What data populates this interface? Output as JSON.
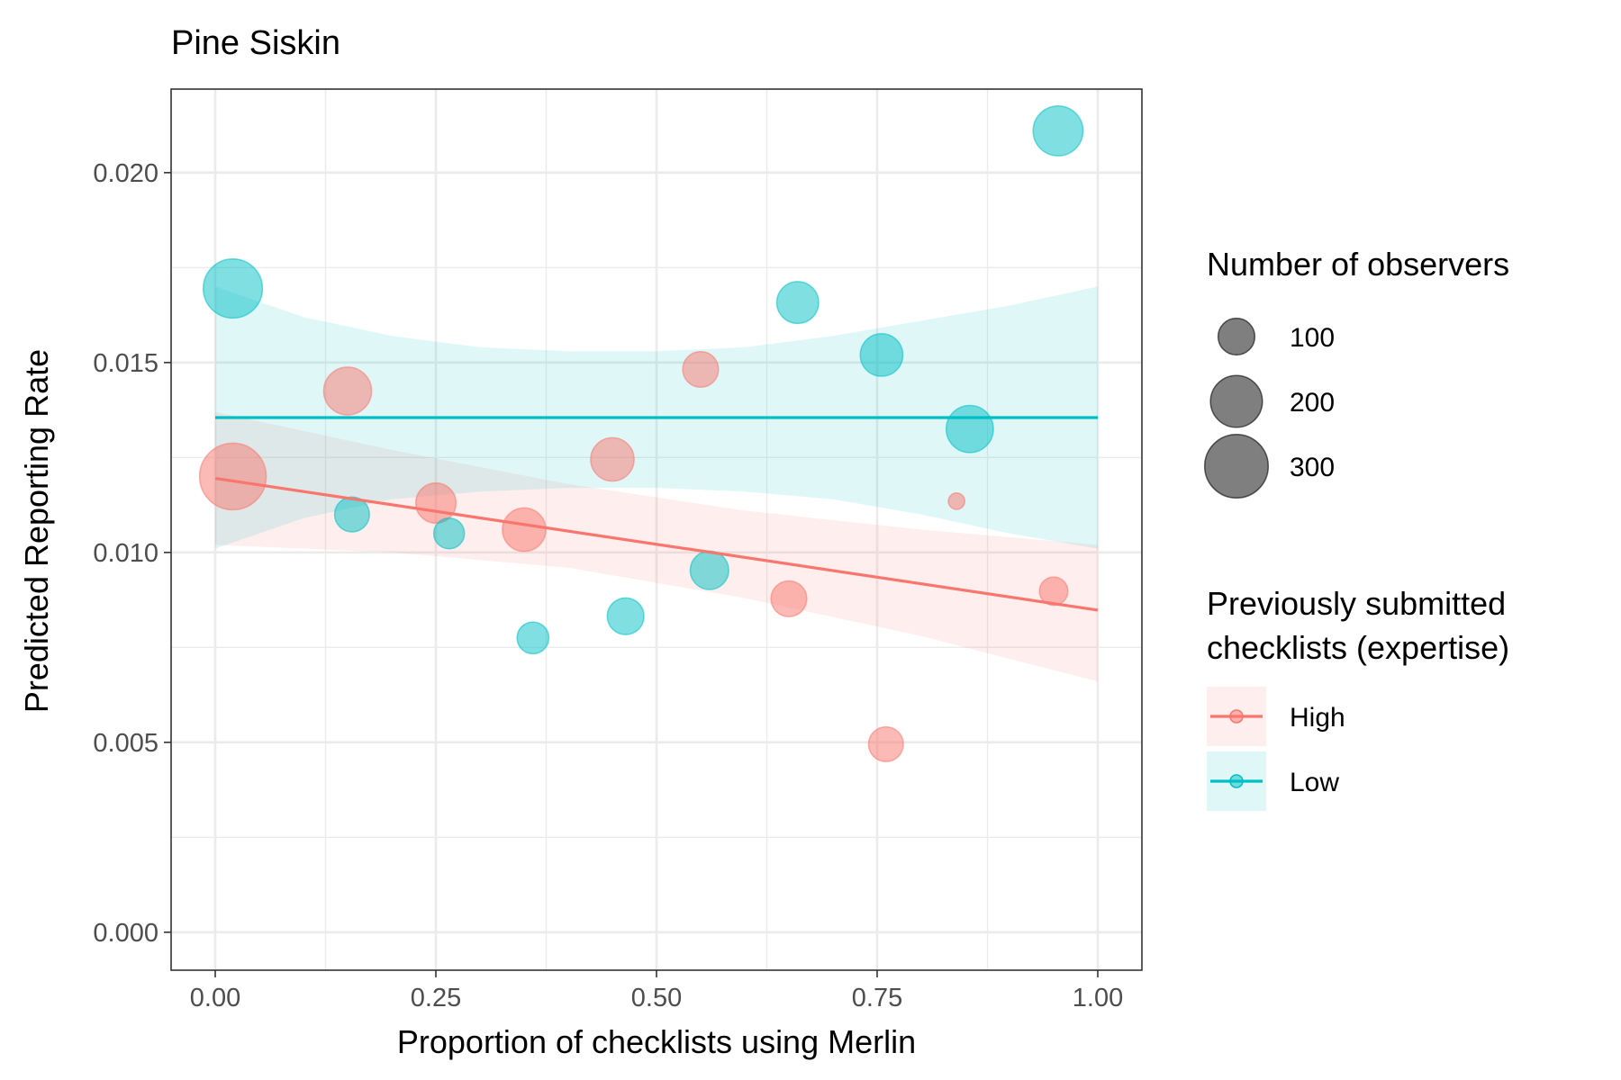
{
  "chart_data": {
    "type": "scatter",
    "title": "Pine Siskin",
    "xlabel": "Proportion of checklists using Merlin",
    "ylabel": "Predicted Reporting Rate",
    "xlim": [
      -0.05,
      1.05
    ],
    "ylim": [
      -0.001,
      0.0222
    ],
    "x_ticks": [
      0,
      0.25,
      0.5,
      0.75,
      1
    ],
    "x_tick_labels": [
      "0.00",
      "0.25",
      "0.50",
      "0.75",
      "1.00"
    ],
    "y_ticks": [
      0,
      0.005,
      0.01,
      0.015,
      0.02
    ],
    "y_tick_labels": [
      "0.000",
      "0.005",
      "0.010",
      "0.015",
      "0.020"
    ],
    "grid": true,
    "legend_position": "right",
    "size_legend": {
      "title": "Number of observers",
      "entries": [
        {
          "label": "100",
          "value": 100
        },
        {
          "label": "200",
          "value": 200
        },
        {
          "label": "300",
          "value": 300
        }
      ]
    },
    "color_legend": {
      "title_lines": [
        "Previously submitted",
        "checklists (expertise)"
      ],
      "entries": [
        {
          "label": "High",
          "color": "#F8766D"
        },
        {
          "label": "Low",
          "color": "#00BFC4"
        }
      ]
    },
    "series": [
      {
        "name": "High",
        "color": "#F8766D",
        "points": [
          {
            "x": 0.02,
            "y": 0.012,
            "observers": 330
          },
          {
            "x": 0.15,
            "y": 0.01425,
            "observers": 170
          },
          {
            "x": 0.25,
            "y": 0.0113,
            "observers": 120
          },
          {
            "x": 0.35,
            "y": 0.0106,
            "observers": 140
          },
          {
            "x": 0.45,
            "y": 0.01245,
            "observers": 140
          },
          {
            "x": 0.55,
            "y": 0.01482,
            "observers": 95
          },
          {
            "x": 0.65,
            "y": 0.00878,
            "observers": 95
          },
          {
            "x": 0.76,
            "y": 0.00495,
            "observers": 90
          },
          {
            "x": 0.84,
            "y": 0.01135,
            "observers": 20
          },
          {
            "x": 0.95,
            "y": 0.00898,
            "observers": 60
          }
        ],
        "fit": {
          "x": [
            0,
            1
          ],
          "y": [
            0.01195,
            0.00848
          ]
        },
        "ribbon": {
          "x": [
            0,
            0.2,
            0.4,
            0.6,
            0.8,
            1
          ],
          "lower": [
            0.0102,
            0.01,
            0.0096,
            0.0088,
            0.0078,
            0.0066
          ],
          "upper": [
            0.0137,
            0.0127,
            0.0118,
            0.0111,
            0.0106,
            0.0102
          ]
        }
      },
      {
        "name": "Low",
        "color": "#00BFC4",
        "points": [
          {
            "x": 0.02,
            "y": 0.01695,
            "observers": 260
          },
          {
            "x": 0.155,
            "y": 0.011,
            "observers": 90
          },
          {
            "x": 0.265,
            "y": 0.0105,
            "observers": 70
          },
          {
            "x": 0.36,
            "y": 0.00775,
            "observers": 75
          },
          {
            "x": 0.465,
            "y": 0.00832,
            "observers": 100
          },
          {
            "x": 0.56,
            "y": 0.00953,
            "observers": 110
          },
          {
            "x": 0.66,
            "y": 0.01658,
            "observers": 130
          },
          {
            "x": 0.755,
            "y": 0.0152,
            "observers": 135
          },
          {
            "x": 0.855,
            "y": 0.01325,
            "observers": 165
          },
          {
            "x": 0.955,
            "y": 0.0211,
            "observers": 185
          }
        ],
        "fit": {
          "x": [
            0,
            1
          ],
          "y": [
            0.01355,
            0.01355
          ]
        },
        "ribbon": {
          "x": [
            0,
            0.1,
            0.2,
            0.3,
            0.4,
            0.5,
            0.6,
            0.7,
            0.8,
            0.9,
            1
          ],
          "lower": [
            0.0101,
            0.0109,
            0.0114,
            0.0116,
            0.0117,
            0.0117,
            0.0116,
            0.0114,
            0.011,
            0.0105,
            0.0101
          ],
          "upper": [
            0.017,
            0.0162,
            0.0157,
            0.0154,
            0.0153,
            0.0153,
            0.0154,
            0.0157,
            0.0161,
            0.0165,
            0.017
          ]
        }
      }
    ]
  }
}
